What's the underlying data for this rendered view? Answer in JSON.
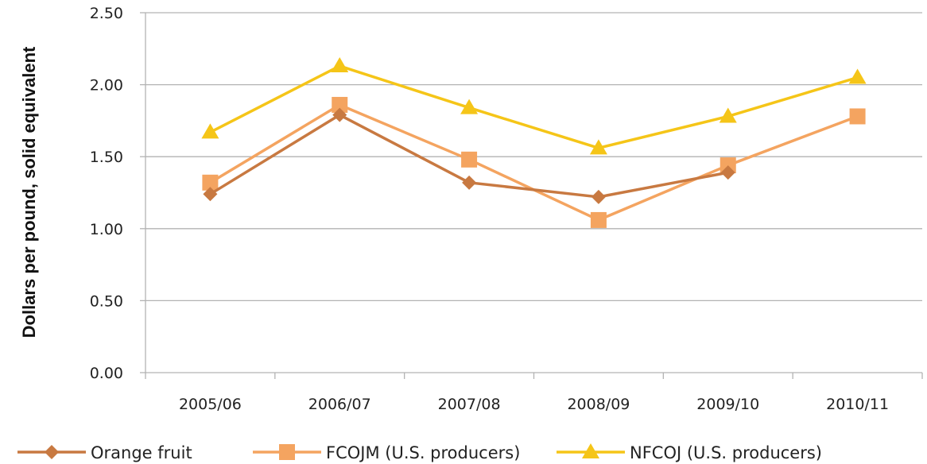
{
  "chart_data": {
    "type": "line",
    "title": "",
    "xlabel": "",
    "ylabel": "Dollars per pound, solid equivalent",
    "categories": [
      "2005/06",
      "2006/07",
      "2007/08",
      "2008/09",
      "2009/10",
      "2010/11"
    ],
    "yticks": [
      "0.00",
      "0.50",
      "1.00",
      "1.50",
      "2.00",
      "2.50"
    ],
    "ylim": [
      0,
      2.5
    ],
    "grid": "horizontal",
    "legend_position": "bottom",
    "series": [
      {
        "name": "Orange fruit",
        "marker": "diamond",
        "color": "#c87941",
        "values": [
          1.24,
          1.79,
          1.32,
          1.22,
          1.39,
          null
        ]
      },
      {
        "name": "FCOJM (U.S. producers)",
        "marker": "square",
        "color": "#f4a460",
        "values": [
          1.32,
          1.86,
          1.48,
          1.06,
          1.44,
          1.78
        ]
      },
      {
        "name": "NFCOJ (U.S. producers)",
        "marker": "triangle",
        "color": "#f5c518",
        "values": [
          1.67,
          2.13,
          1.84,
          1.56,
          1.78,
          2.05
        ]
      }
    ]
  }
}
